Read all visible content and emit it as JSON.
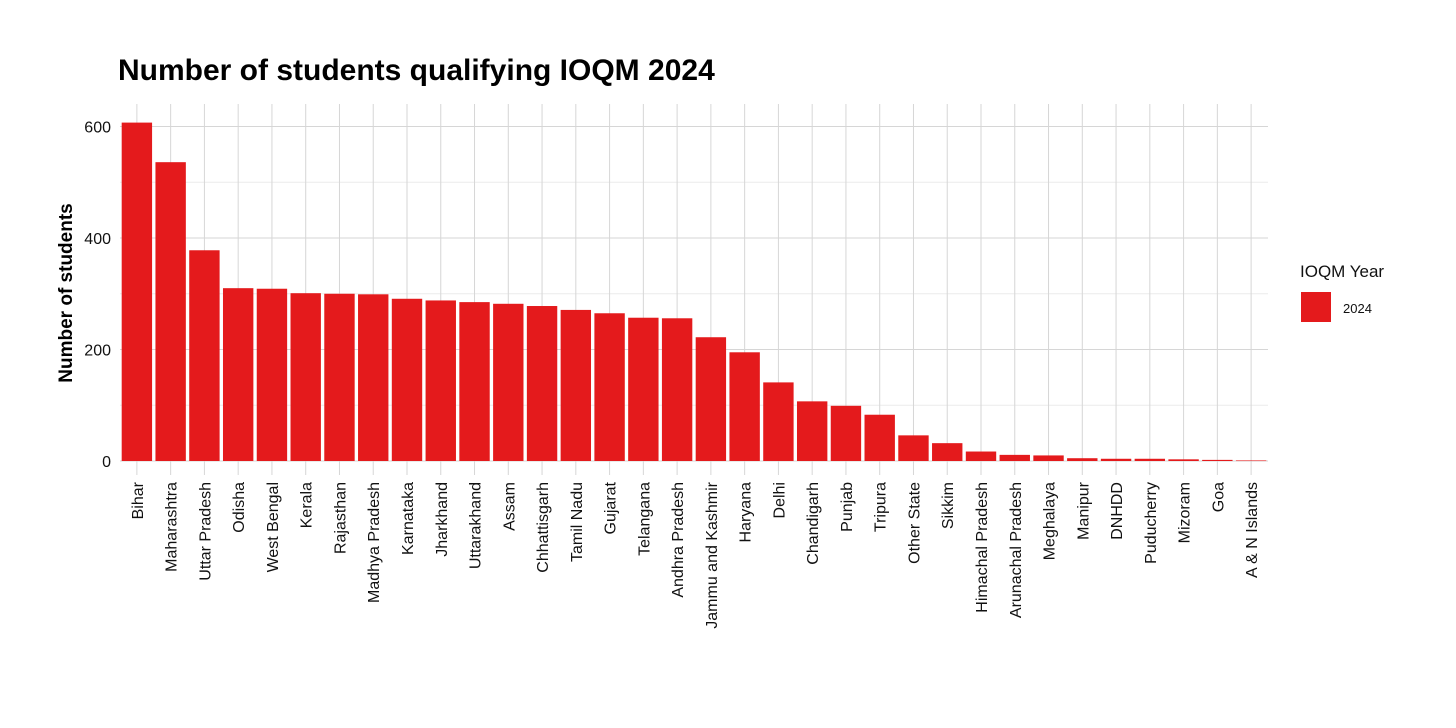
{
  "chart_data": {
    "type": "bar",
    "title": "Number of students qualifying IOQM 2024",
    "xlabel": "",
    "ylabel": "Number of students",
    "ylim": [
      0,
      630
    ],
    "yticks": [
      0,
      200,
      400,
      600
    ],
    "grid": true,
    "legend": {
      "title": "IOQM Year",
      "position": "right"
    },
    "categories": [
      "Bihar",
      "Maharashtra",
      "Uttar Pradesh",
      "Odisha",
      "West Bengal",
      "Kerala",
      "Rajasthan",
      "Madhya Pradesh",
      "Karnataka",
      "Jharkhand",
      "Uttarakhand",
      "Assam",
      "Chhattisgarh",
      "Tamil Nadu",
      "Gujarat",
      "Telangana",
      "Andhra Pradesh",
      "Jammu and Kashmir",
      "Haryana",
      "Delhi",
      "Chandigarh",
      "Punjab",
      "Tripura",
      "Other State",
      "Sikkim",
      "Himachal Pradesh",
      "Arunachal Pradesh",
      "Meghalaya",
      "Manipur",
      "DNHDD",
      "Puducherry",
      "Mizoram",
      "Goa",
      "A & N Islands"
    ],
    "series": [
      {
        "name": "2024",
        "color": "#e41a1c",
        "values": [
          607,
          536,
          378,
          310,
          309,
          301,
          300,
          299,
          291,
          288,
          285,
          282,
          278,
          271,
          265,
          257,
          256,
          222,
          195,
          141,
          107,
          99,
          83,
          46,
          32,
          17,
          11,
          10,
          5,
          4,
          4,
          3,
          2,
          1
        ]
      }
    ]
  }
}
